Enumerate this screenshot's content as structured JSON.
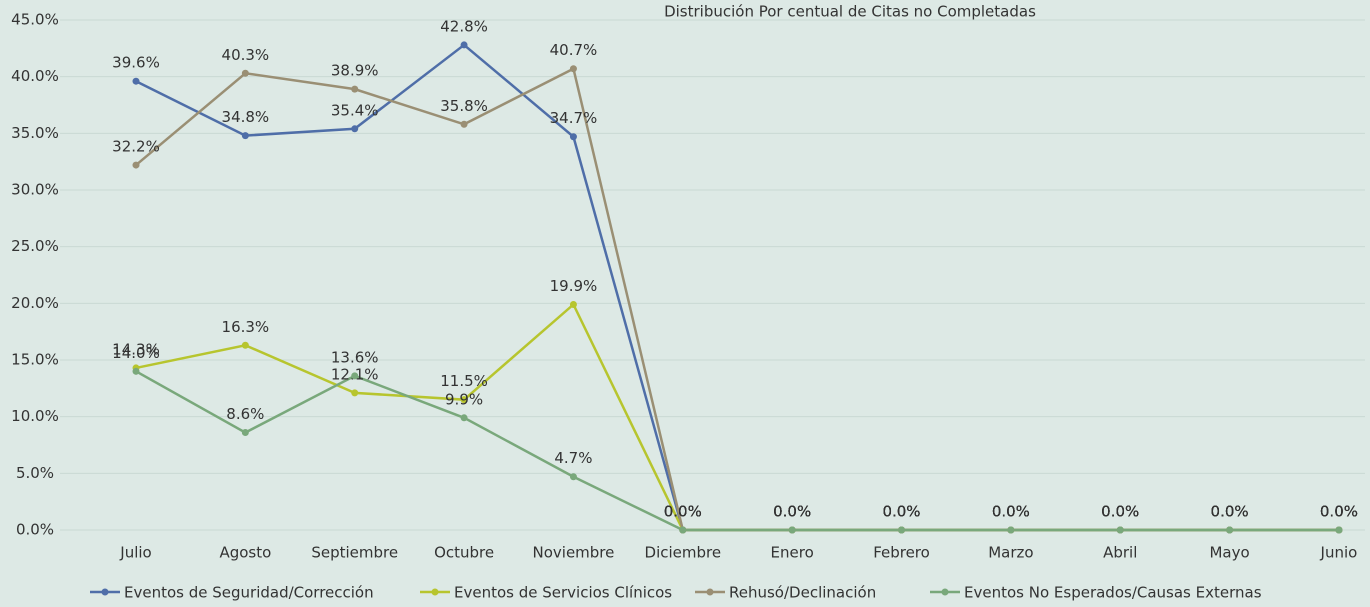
{
  "chart_data": {
    "type": "line",
    "title": "Distribución Por centual de Citas no Completadas",
    "categories": [
      "Julio",
      "Agosto",
      "Septiembre",
      "Octubre",
      "Noviembre",
      "Diciembre",
      "Enero",
      "Febrero",
      "Marzo",
      "Abril",
      "Mayo",
      "Junio"
    ],
    "series": [
      {
        "name": "Eventos de Seguridad/Corrección",
        "color": "#4f6ea8",
        "values": [
          39.6,
          34.8,
          35.4,
          42.8,
          34.7,
          0,
          0,
          0,
          0,
          0,
          0,
          0
        ],
        "value_labels": [
          "39.6%",
          "34.8%",
          "35.4%",
          "42.8%",
          "34.7%",
          "0.0%",
          "0.0%",
          "0.0%",
          "0.0%",
          "0.0%",
          "0.0%",
          "0.0%"
        ]
      },
      {
        "name": "Eventos de Servicios Clínicos",
        "color": "#b7c52e",
        "values": [
          14.3,
          16.3,
          12.1,
          11.5,
          19.9,
          0,
          0,
          0,
          0,
          0,
          0,
          0
        ],
        "value_labels": [
          "14.3%",
          "16.3%",
          "12.1%",
          "11.5%",
          "19.9%",
          "0.0%",
          "0.0%",
          "0.0%",
          "0.0%",
          "0.0%",
          "0.0%",
          "0.0%"
        ]
      },
      {
        "name": "Rehusó/Declinación",
        "color": "#9a8f74",
        "values": [
          32.2,
          40.3,
          38.9,
          35.8,
          40.7,
          0,
          0,
          0,
          0,
          0,
          0,
          0
        ],
        "value_labels": [
          "32.2%",
          "40.3%",
          "38.9%",
          "35.8%",
          "40.7%",
          "0.0%",
          "0.0%",
          "0.0%",
          "0.0%",
          "0.0%",
          "0.0%",
          "0.0%"
        ]
      },
      {
        "name": "Eventos No Esperados/Causas Externas",
        "color": "#79a87b",
        "values": [
          14.0,
          8.6,
          13.6,
          9.9,
          4.7,
          0,
          0,
          0,
          0,
          0,
          0,
          0
        ],
        "value_labels": [
          "14.0%",
          "8.6%",
          "13.6%",
          "9.9%",
          "4.7%",
          "0.0%",
          "0.0%",
          "0.0%",
          "0.0%",
          "0.0%",
          "0.0%",
          "0.0%"
        ]
      }
    ],
    "ylim": [
      0,
      45
    ],
    "yticks": [
      {
        "value": 0,
        "label": "0.0%"
      },
      {
        "value": 5,
        "label": "5.0%"
      },
      {
        "value": 10,
        "label": "10.0%"
      },
      {
        "value": 15,
        "label": "15.0%"
      },
      {
        "value": 20,
        "label": "20.0%"
      },
      {
        "value": 25,
        "label": "25.0%"
      },
      {
        "value": 30,
        "label": "30.0%"
      },
      {
        "value": 35,
        "label": "35.0%"
      },
      {
        "value": 40,
        "label": "40.0%"
      },
      {
        "value": 45,
        "label": "45.0%"
      }
    ],
    "grid": true,
    "legend": "bottom"
  }
}
